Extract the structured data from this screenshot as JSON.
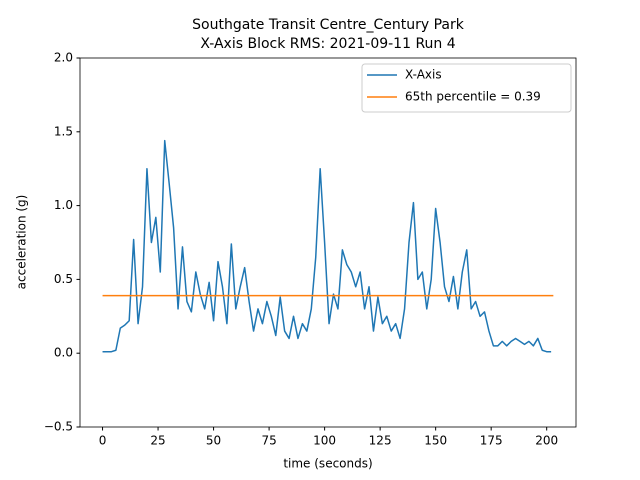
{
  "chart_data": {
    "type": "line",
    "title": "Southgate Transit Centre_Century Park",
    "subtitle": "X-Axis Block RMS: 2021-09-11 Run 4",
    "xlabel": "time (seconds)",
    "ylabel": "acceleration (g)",
    "x": [
      0,
      2,
      4,
      6,
      8,
      10,
      12,
      14,
      16,
      18,
      20,
      22,
      24,
      26,
      28,
      30,
      32,
      34,
      36,
      38,
      40,
      42,
      44,
      46,
      48,
      50,
      52,
      54,
      56,
      58,
      60,
      62,
      64,
      66,
      68,
      70,
      72,
      74,
      76,
      78,
      80,
      82,
      84,
      86,
      88,
      90,
      92,
      94,
      96,
      98,
      100,
      102,
      104,
      106,
      108,
      110,
      112,
      114,
      116,
      118,
      120,
      122,
      124,
      126,
      128,
      130,
      132,
      134,
      136,
      138,
      140,
      142,
      144,
      146,
      148,
      150,
      152,
      154,
      156,
      158,
      160,
      162,
      164,
      166,
      168,
      170,
      172,
      174,
      176,
      178,
      180,
      182,
      184,
      186,
      188,
      190,
      192,
      194,
      196,
      198,
      200,
      202
    ],
    "series": [
      {
        "name": "X-Axis",
        "color": "#1f77b4",
        "values": [
          0.01,
          0.01,
          0.01,
          0.02,
          0.17,
          0.19,
          0.22,
          0.77,
          0.2,
          0.45,
          1.25,
          0.75,
          0.92,
          0.55,
          1.44,
          1.15,
          0.85,
          0.3,
          0.72,
          0.35,
          0.28,
          0.55,
          0.4,
          0.3,
          0.48,
          0.22,
          0.62,
          0.45,
          0.2,
          0.74,
          0.3,
          0.45,
          0.58,
          0.35,
          0.15,
          0.3,
          0.2,
          0.35,
          0.25,
          0.12,
          0.38,
          0.15,
          0.1,
          0.25,
          0.1,
          0.2,
          0.15,
          0.3,
          0.65,
          1.25,
          0.75,
          0.2,
          0.4,
          0.3,
          0.7,
          0.6,
          0.55,
          0.45,
          0.55,
          0.3,
          0.45,
          0.15,
          0.38,
          0.2,
          0.25,
          0.15,
          0.2,
          0.1,
          0.3,
          0.75,
          1.02,
          0.5,
          0.55,
          0.3,
          0.5,
          0.98,
          0.75,
          0.45,
          0.35,
          0.52,
          0.3,
          0.55,
          0.7,
          0.3,
          0.35,
          0.25,
          0.28,
          0.15,
          0.05,
          0.05,
          0.08,
          0.05,
          0.08,
          0.1,
          0.08,
          0.06,
          0.08,
          0.05,
          0.1,
          0.02,
          0.01,
          0.01
        ]
      },
      {
        "name": "65th percentile = 0.39",
        "color": "#ff7f0e",
        "x": [
          0,
          203
        ],
        "values": [
          0.39,
          0.39
        ]
      }
    ],
    "xlim": [
      -10.15,
      213.2
    ],
    "xticks": [
      0,
      25,
      50,
      75,
      100,
      125,
      150,
      175,
      200
    ],
    "ylim": [
      -0.5,
      2.0
    ],
    "yticks": [
      {
        "value": -0.5,
        "label": "−0.5"
      },
      {
        "value": 0,
        "label": "0.0"
      },
      {
        "value": 0.5,
        "label": "0.5"
      },
      {
        "value": 1,
        "label": "1.0"
      },
      {
        "value": 1.5,
        "label": "1.5"
      },
      {
        "value": 2,
        "label": "2.0"
      }
    ],
    "grid": false,
    "legend": "upper-right"
  }
}
